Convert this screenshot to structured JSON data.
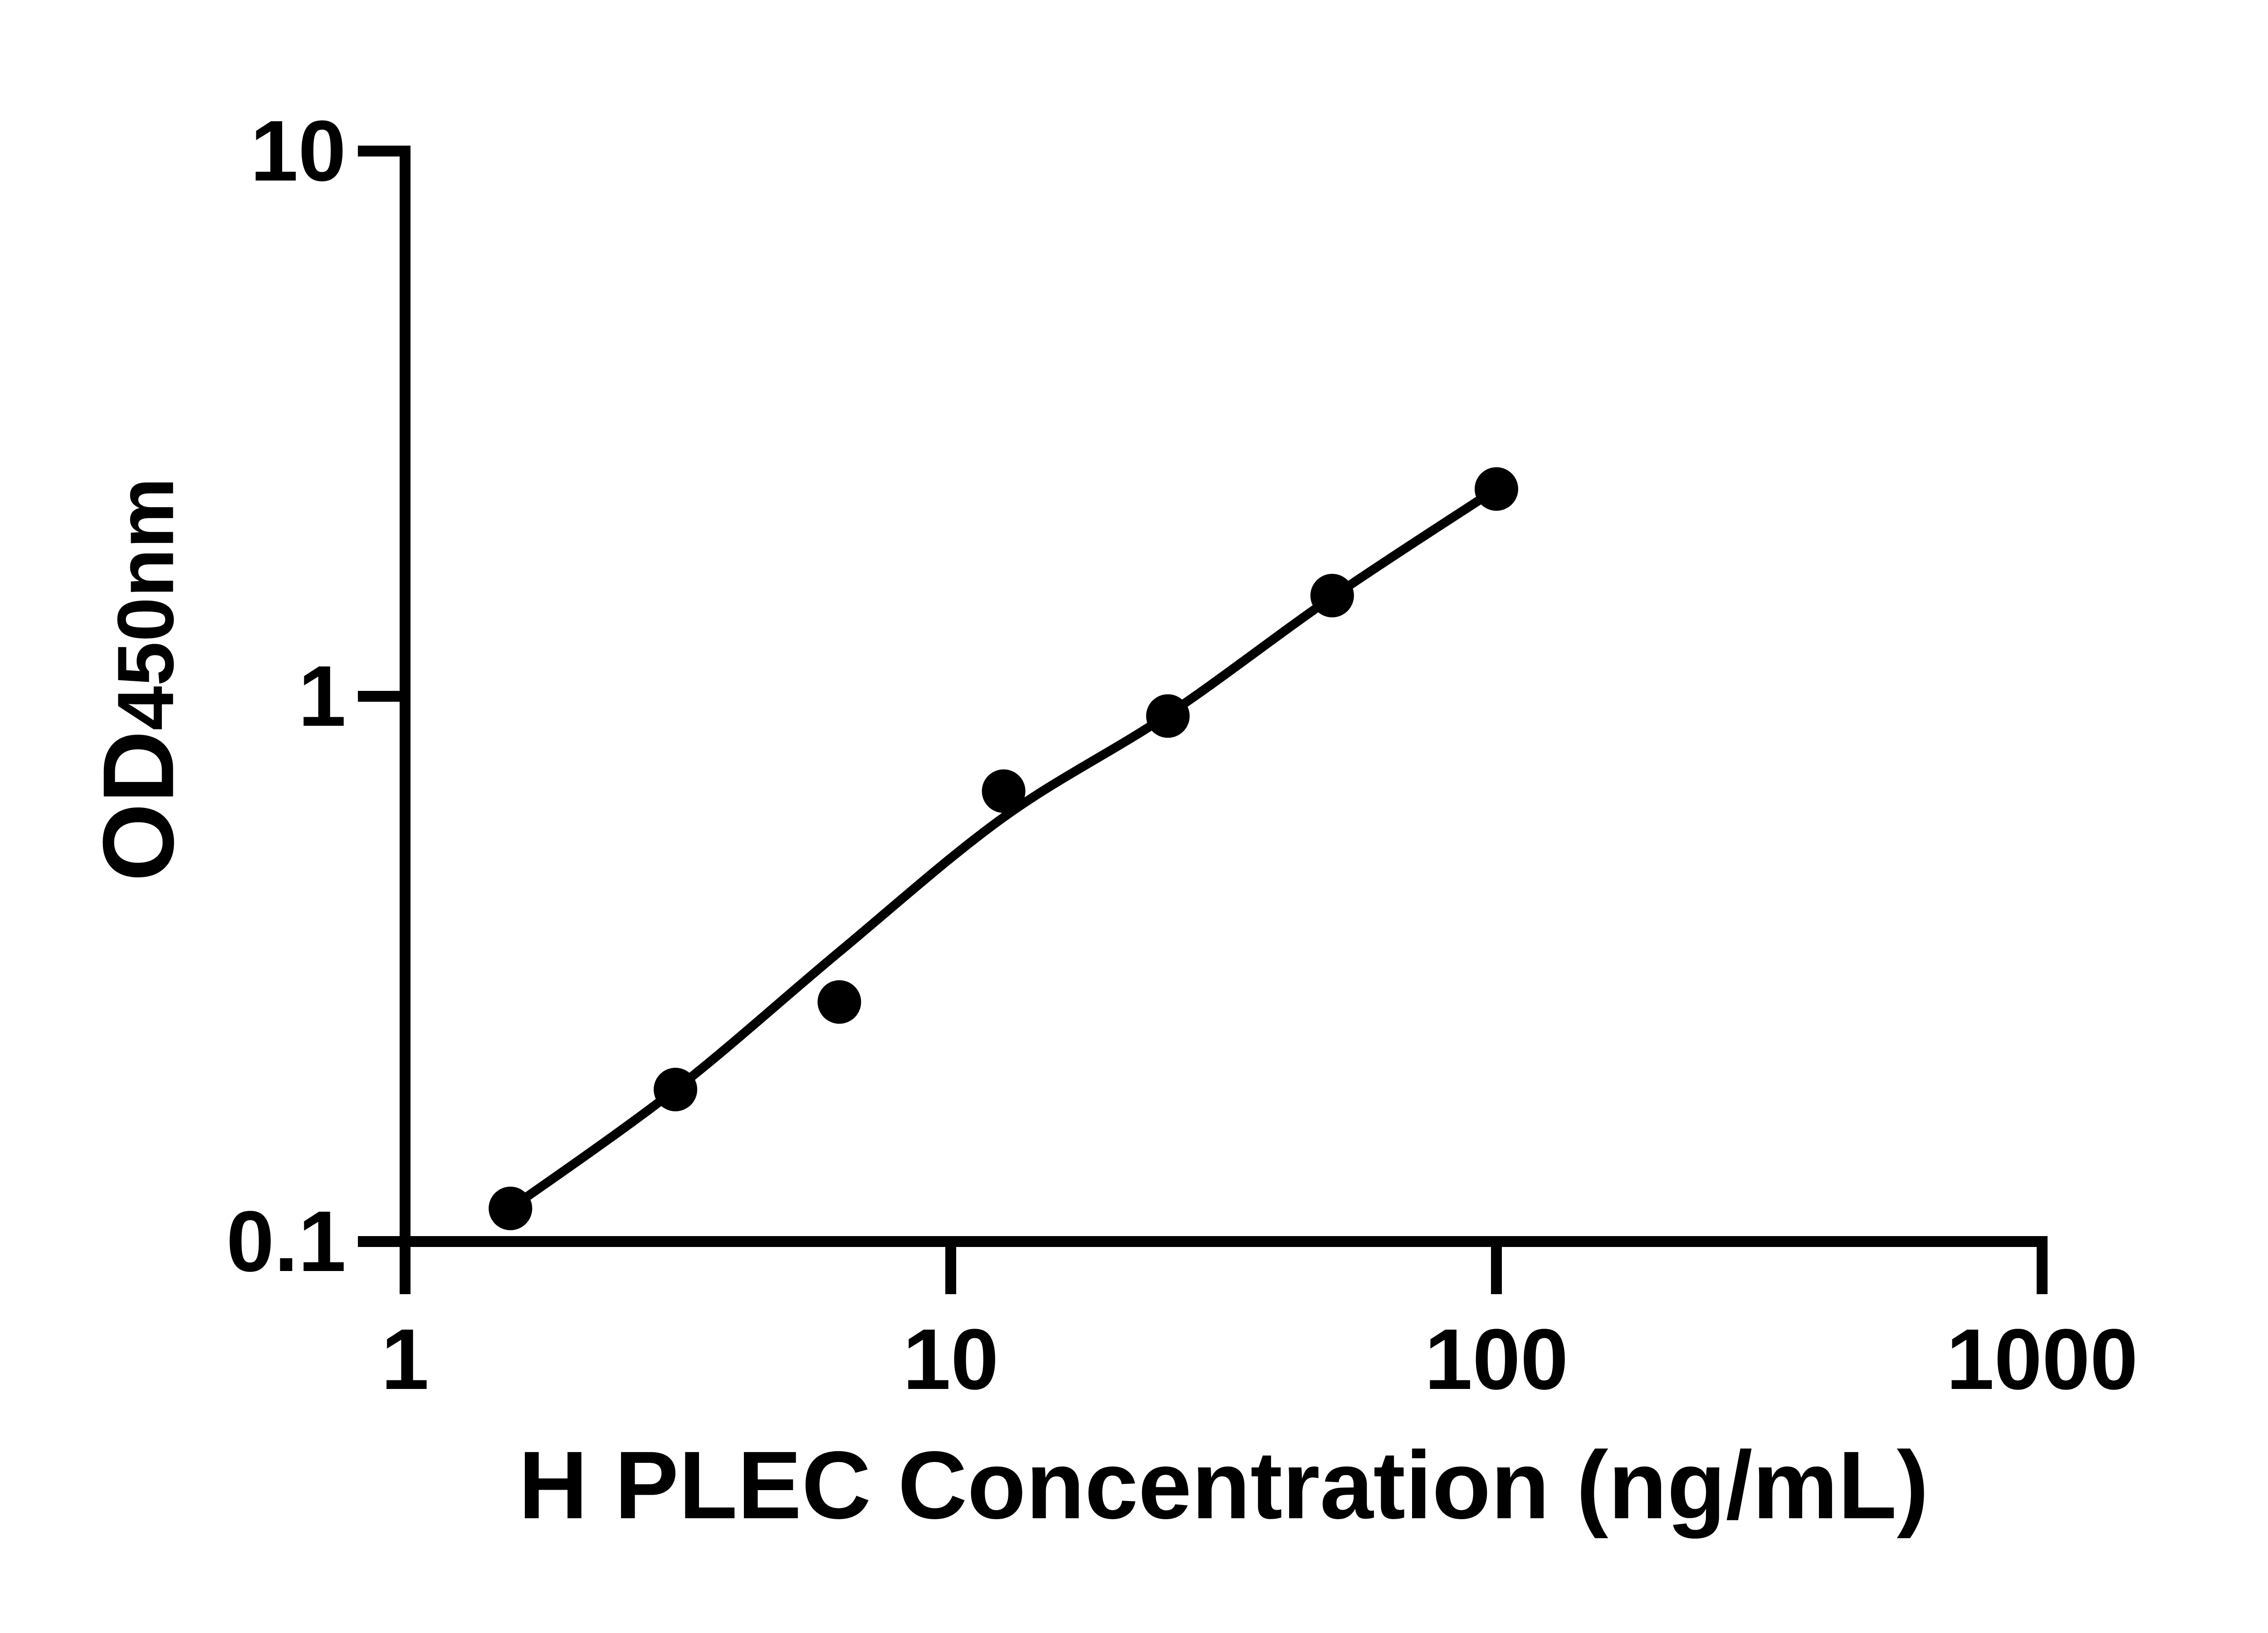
{
  "figure": {
    "background": "#ffffff",
    "ink_color": "#000000"
  },
  "chart_data": {
    "type": "scatter",
    "title": "",
    "xlabel": "H PLEC Concentration (ng/mL)",
    "ylabel_main": "OD",
    "ylabel_sub": "450nm",
    "x_scale": "log10",
    "y_scale": "log10",
    "xlim": [
      1,
      1000
    ],
    "ylim": [
      0.1,
      10
    ],
    "grid": false,
    "legend": null,
    "x_ticks": [
      {
        "value": 1,
        "label": "1"
      },
      {
        "value": 10,
        "label": "10"
      },
      {
        "value": 100,
        "label": "100"
      },
      {
        "value": 1000,
        "label": "1000"
      }
    ],
    "y_ticks": [
      {
        "value": 10,
        "label": "10"
      },
      {
        "value": 1,
        "label": "1"
      },
      {
        "value": 0.1,
        "label": "0.1"
      }
    ],
    "series": [
      {
        "name": "standards",
        "marker": "filled-circle",
        "color": "#000000",
        "points": [
          {
            "x": 1.56,
            "y": 0.115
          },
          {
            "x": 3.13,
            "y": 0.19
          },
          {
            "x": 6.25,
            "y": 0.275
          },
          {
            "x": 12.5,
            "y": 0.67
          },
          {
            "x": 25,
            "y": 0.92
          },
          {
            "x": 50,
            "y": 1.53
          },
          {
            "x": 100,
            "y": 2.4
          }
        ]
      }
    ],
    "fit_curve": {
      "name": "standard-curve-fit",
      "color": "#000000",
      "points": [
        {
          "x": 1.56,
          "y": 0.115
        },
        {
          "x": 3.13,
          "y": 0.19
        },
        {
          "x": 6.25,
          "y": 0.34
        },
        {
          "x": 12.5,
          "y": 0.6
        },
        {
          "x": 25,
          "y": 0.925
        },
        {
          "x": 50,
          "y": 1.52
        },
        {
          "x": 100,
          "y": 2.4
        }
      ]
    }
  }
}
